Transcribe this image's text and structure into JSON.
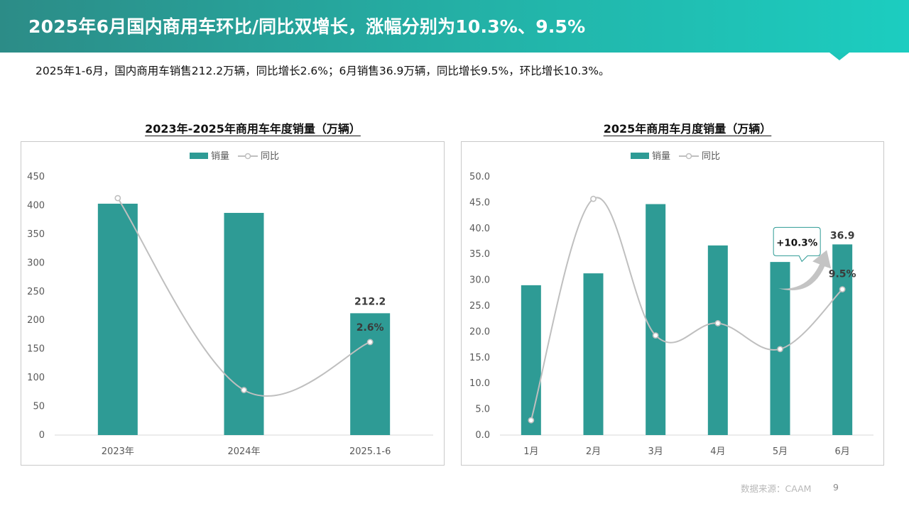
{
  "header": {
    "title": "2025年6月国内商用车环比/同比双增长，涨幅分别为10.3%、9.5%"
  },
  "summary": {
    "text": "2025年1-6月，国内商用车销售212.2万辆，同比增长2.6%；6月销售36.9万辆，同比增长9.5%，环比增长10.3%。"
  },
  "colors": {
    "bar": "#2e9b95",
    "line": "#bfbfbf",
    "header_start": "#2c8c87",
    "header_end": "#1ccdc0"
  },
  "chart_data": [
    {
      "type": "bar",
      "title": "2023年-2025年商用车年度销量（万辆）",
      "legend": [
        "销量",
        "同比"
      ],
      "legend_position": "top",
      "categories": [
        "2023年",
        "2024年",
        "2025.1-6"
      ],
      "series": [
        {
          "name": "销量",
          "type": "bar",
          "values": [
            403,
            387,
            212.2
          ]
        },
        {
          "name": "同比",
          "type": "line",
          "values": [
            22.1,
            -3.9,
            2.6
          ],
          "axis": "secondary"
        }
      ],
      "y_ticks": [
        "0",
        "50",
        "100",
        "150",
        "200",
        "250",
        "300",
        "350",
        "400",
        "450"
      ],
      "ylim": [
        0,
        450
      ],
      "secondary_ylim": [
        -10,
        25
      ],
      "data_labels": [
        {
          "category": "2025.1-6",
          "series": "销量",
          "text": "212.2"
        },
        {
          "category": "2025.1-6",
          "series": "同比",
          "text": "2.6%"
        }
      ],
      "grid": false
    },
    {
      "type": "bar",
      "title": "2025年商用车月度销量（万辆）",
      "legend": [
        "销量",
        "同比"
      ],
      "legend_position": "top",
      "categories": [
        "1月",
        "2月",
        "3月",
        "4月",
        "5月",
        "6月"
      ],
      "series": [
        {
          "name": "销量",
          "type": "bar",
          "values": [
            29.0,
            31.3,
            44.7,
            36.7,
            33.5,
            36.9
          ]
        },
        {
          "name": "同比",
          "type": "line",
          "values": [
            -26.0,
            34.0,
            -3.0,
            0.3,
            -6.7,
            9.5
          ],
          "axis": "secondary"
        }
      ],
      "y_ticks": [
        "0.0",
        "5.0",
        "10.0",
        "15.0",
        "20.0",
        "25.0",
        "30.0",
        "35.0",
        "40.0",
        "45.0",
        "50.0"
      ],
      "ylim": [
        0,
        50
      ],
      "secondary_ylim": [
        -30,
        40
      ],
      "data_labels": [
        {
          "category": "6月",
          "series": "销量",
          "text": "36.9"
        },
        {
          "category": "6月",
          "series": "同比",
          "text": "9.5%"
        }
      ],
      "callout": "+10.3%",
      "grid": false
    }
  ],
  "footer": {
    "source": "数据来源：CAAM",
    "page": "9"
  }
}
